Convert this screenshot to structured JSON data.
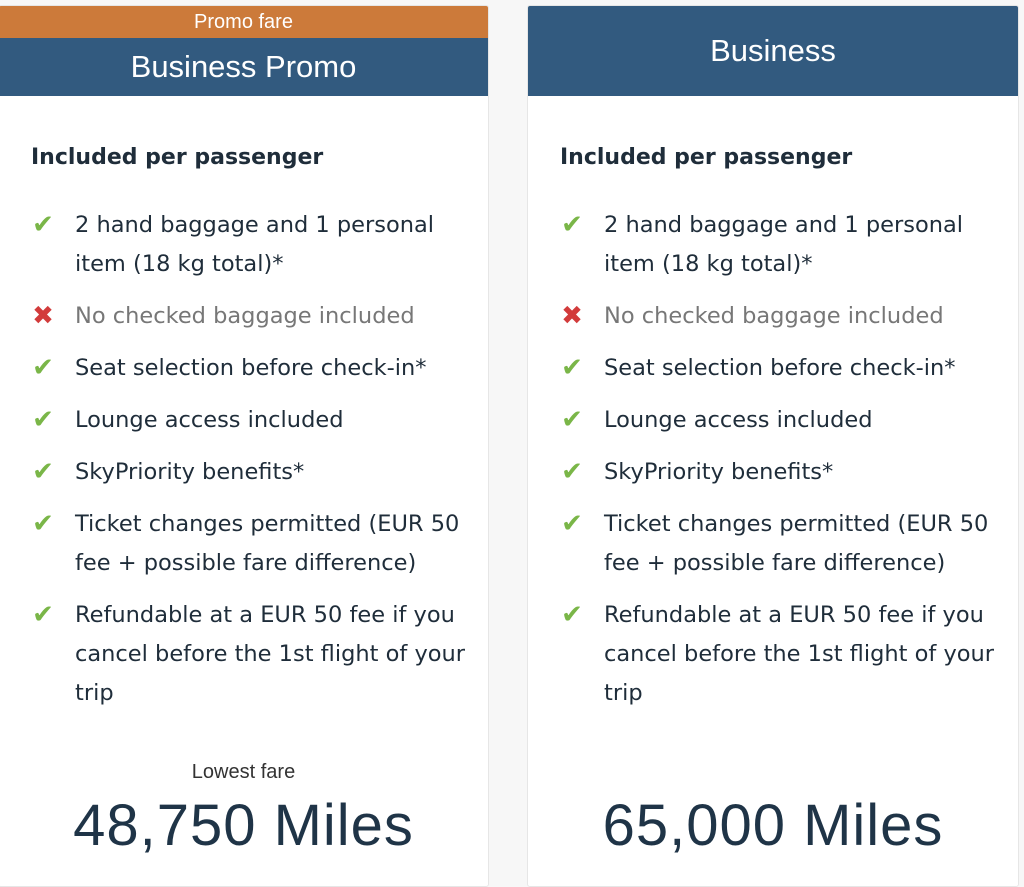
{
  "fares": [
    {
      "badge": "Promo fare",
      "title": "Business Promo",
      "included_heading": "Included per passenger",
      "items": [
        {
          "icon": "check-icon",
          "text": "2 hand baggage and 1 personal item (18 kg total)*"
        },
        {
          "icon": "cross-icon",
          "text": "No checked baggage included"
        },
        {
          "icon": "check-icon",
          "text": "Seat selection before check-in*"
        },
        {
          "icon": "check-icon",
          "text": "Lounge access included"
        },
        {
          "icon": "check-icon",
          "text": "SkyPriority benefits*"
        },
        {
          "icon": "check-icon",
          "text": "Ticket changes permitted (EUR 50 fee + possible fare difference)"
        },
        {
          "icon": "check-icon",
          "text": "Refundable at a EUR 50 fee if you cancel before the 1st flight of your trip"
        }
      ],
      "price_label": "Lowest fare",
      "price": "48,750 Miles"
    },
    {
      "title": "Business",
      "included_heading": "Included per passenger",
      "items": [
        {
          "icon": "check-icon",
          "text": "2 hand baggage and 1 personal item (18 kg total)*"
        },
        {
          "icon": "cross-icon",
          "text": "No checked baggage included"
        },
        {
          "icon": "check-icon",
          "text": "Seat selection before check-in*"
        },
        {
          "icon": "check-icon",
          "text": "Lounge access included"
        },
        {
          "icon": "check-icon",
          "text": "SkyPriority benefits*"
        },
        {
          "icon": "check-icon",
          "text": "Ticket changes permitted (EUR 50 fee + possible fare difference)"
        },
        {
          "icon": "check-icon",
          "text": "Refundable at a EUR 50 fee if you cancel before the 1st flight of your trip"
        }
      ],
      "price": "65,000 Miles"
    }
  ],
  "colors": {
    "promo": "#cc7a3a",
    "header": "#325a7f",
    "check": "#7ab648",
    "cross": "#d23b3b"
  }
}
